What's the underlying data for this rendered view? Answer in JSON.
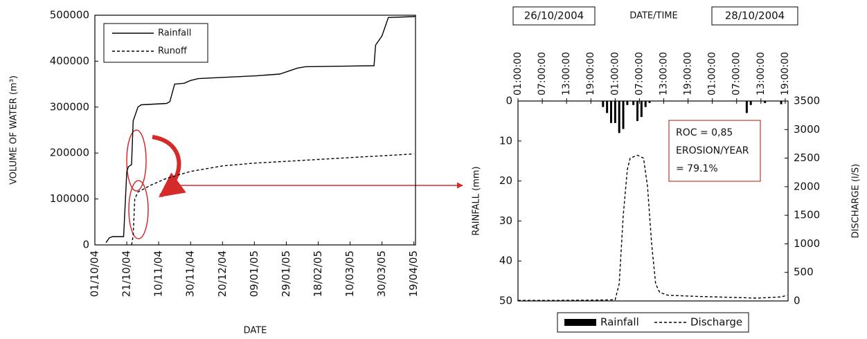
{
  "chart_data": [
    {
      "type": "line",
      "xlabel": "DATE",
      "ylabel": "VOLUME OF WATER (m³)",
      "xlim": [
        "01/10/04",
        "20/04/05"
      ],
      "xticks": [
        "01/10/04",
        "21/10/04",
        "10/11/04",
        "30/11/04",
        "20/12/04",
        "09/01/05",
        "29/01/05",
        "18/02/05",
        "10/03/05",
        "30/03/05",
        "19/04/05"
      ],
      "ylim": [
        0,
        500000
      ],
      "yticks": [
        0,
        100000,
        200000,
        300000,
        400000,
        500000
      ],
      "legend": "upper left",
      "series": [
        {
          "name": "Rainfall",
          "color": "#000000",
          "line_style": "solid",
          "x": [
            "08/10/04",
            "10/10/04",
            "12/10/04",
            "19/10/04",
            "21/10/04",
            "22/10/04",
            "24/10/04",
            "25/10/04",
            "26/10/04",
            "28/10/04",
            "30/10/04",
            "15/11/04",
            "17/11/04",
            "20/11/04",
            "26/11/04",
            "30/11/04",
            "05/12/04",
            "10/01/05",
            "25/01/05",
            "05/02/05",
            "10/02/05",
            "25/03/05",
            "26/03/05",
            "30/03/05",
            "03/04/05",
            "19/04/05",
            "20/04/05"
          ],
          "values": [
            5000,
            15000,
            18000,
            18000,
            160000,
            170000,
            175000,
            270000,
            280000,
            300000,
            305000,
            308000,
            312000,
            350000,
            352000,
            358000,
            362000,
            368000,
            372000,
            385000,
            388000,
            390000,
            435000,
            455000,
            495000,
            497000,
            498000
          ]
        },
        {
          "name": "Runoff",
          "color": "#000000",
          "line_style": "dashed",
          "x": [
            "24/10/04",
            "25/10/04",
            "26/10/04",
            "28/10/04",
            "05/11/04",
            "15/11/04",
            "30/11/04",
            "20/12/04",
            "09/01/05",
            "29/01/05",
            "18/02/05",
            "10/03/05",
            "30/03/05",
            "19/04/05"
          ],
          "values": [
            0,
            20000,
            100000,
            115000,
            130000,
            145000,
            160000,
            172000,
            178000,
            182000,
            186000,
            190000,
            194000,
            198000
          ]
        }
      ]
    },
    {
      "type": "bar_line",
      "xlabel": "DATE/TIME",
      "ylabel": "RAINFALL (mm)",
      "y2label": "DISCHARGE (l/S)",
      "date_labels": [
        "26/10/2004",
        "28/10/2004"
      ],
      "annotations": [
        "ROC = 0,85",
        "EROSION/YEAR",
        "= 79.1%"
      ],
      "xlim": [
        1,
        67.7
      ],
      "xticks": [
        {
          "value": 1,
          "label": "01:00:00"
        },
        {
          "value": 7,
          "label": "07:00:00"
        },
        {
          "value": 13,
          "label": "13:00:00"
        },
        {
          "value": 19,
          "label": "19:00:00"
        },
        {
          "value": 25,
          "label": "01:00:00"
        },
        {
          "value": 31,
          "label": "07:00:00"
        },
        {
          "value": 37,
          "label": "13:00:00"
        },
        {
          "value": 43,
          "label": "19:00:00"
        },
        {
          "value": 49,
          "label": "01:00:00"
        },
        {
          "value": 55,
          "label": "07:00:00"
        },
        {
          "value": 61,
          "label": "13:00:00"
        },
        {
          "value": 67,
          "label": "19:00:00"
        }
      ],
      "ylim": [
        50,
        0
      ],
      "yticks": [
        0,
        10,
        20,
        30,
        40,
        50
      ],
      "y2lim": [
        0,
        3500
      ],
      "y2ticks": [
        0,
        500,
        1000,
        1500,
        2000,
        2500,
        3000,
        3500
      ],
      "legend": "bottom",
      "series": [
        {
          "name": "Rainfall",
          "type": "bar",
          "color": "#000000",
          "x": [
            22,
            23,
            24,
            25,
            26,
            27,
            28,
            29.5,
            30.5,
            31.5,
            32.5,
            33.5,
            57.5,
            58.5,
            62,
            66
          ],
          "values": [
            1.5,
            3,
            5.5,
            5.5,
            8,
            7,
            1,
            1,
            5,
            4,
            1.5,
            0.5,
            3,
            1,
            0.5,
            0.8
          ]
        },
        {
          "name": "Discharge",
          "type": "line",
          "axis": "y2",
          "color": "#000000",
          "line_style": "dashed",
          "x": [
            1,
            10,
            20,
            25,
            26,
            27,
            28,
            28.7,
            30.5,
            32,
            33,
            34,
            35,
            36,
            38,
            45,
            55,
            60,
            66,
            67.5
          ],
          "values": [
            10,
            10,
            15,
            20,
            300,
            1500,
            2300,
            2500,
            2550,
            2500,
            2000,
            1000,
            300,
            150,
            100,
            80,
            60,
            50,
            70,
            100
          ]
        }
      ]
    }
  ]
}
